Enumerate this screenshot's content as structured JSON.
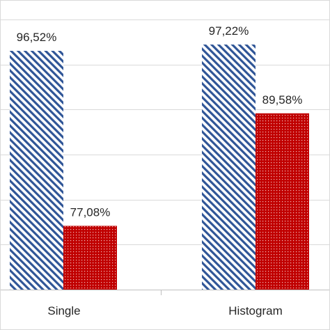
{
  "chart_data": {
    "type": "bar",
    "categories": [
      "Single",
      "Histogram"
    ],
    "series": [
      {
        "values": [
          96.52,
          97.22
        ],
        "labels": [
          "96,52%",
          "97,22%"
        ],
        "color": "#2f5597",
        "pattern": "diagonal-stripes"
      },
      {
        "values": [
          77.08,
          89.58
        ],
        "labels": [
          "77,08%",
          "89,58%"
        ],
        "color": "#c00000",
        "pattern": "dots"
      }
    ],
    "title": "",
    "xlabel": "",
    "ylabel": "",
    "ylim": [
      70,
      100
    ],
    "grid": true
  }
}
